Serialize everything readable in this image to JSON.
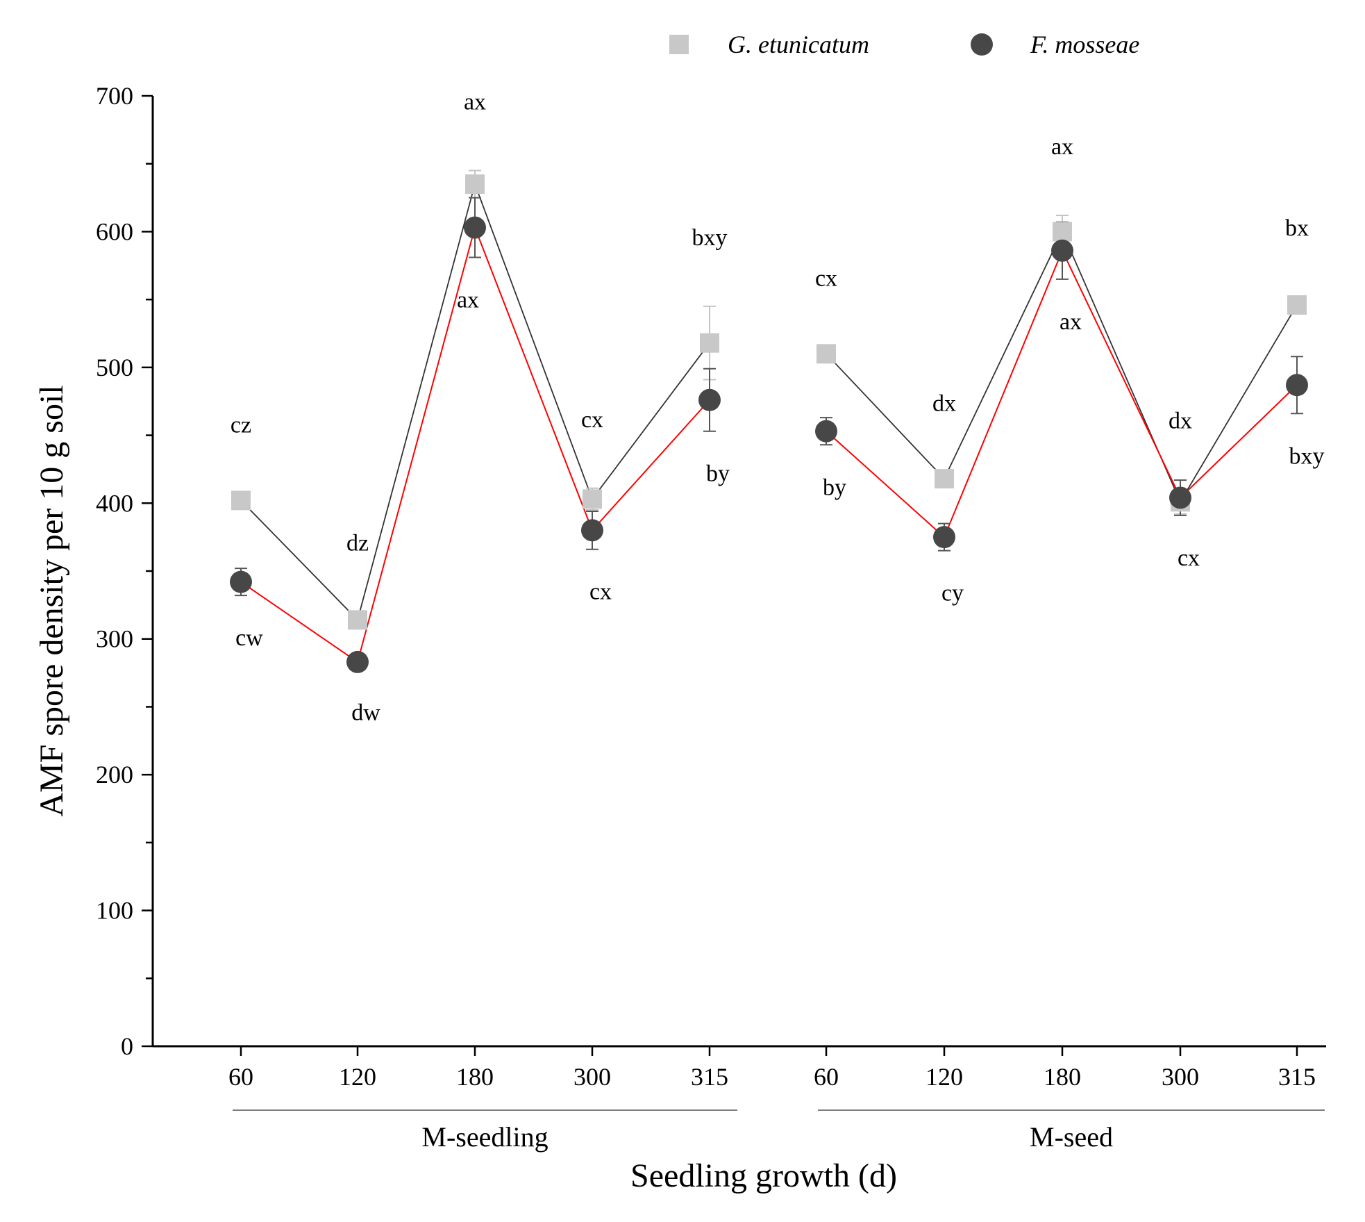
{
  "chart_data": {
    "type": "line",
    "title": "",
    "xlabel": "Seedling growth (d)",
    "ylabel": "AMF spore density per 10 g soil",
    "ylim": [
      0,
      700
    ],
    "yticks": [
      "0",
      "100",
      "200",
      "300",
      "400",
      "500",
      "600",
      "700"
    ],
    "categories": [
      "60",
      "120",
      "180",
      "300",
      "315",
      "60",
      "120",
      "180",
      "300",
      "315"
    ],
    "groups": [
      {
        "label": "M-seedling",
        "start": 0,
        "end": 4
      },
      {
        "label": "M-seed",
        "start": 5,
        "end": 9
      }
    ],
    "legend_position": "top-right",
    "series": [
      {
        "name": "G. etunicatum",
        "marker": "square",
        "color": "#c8c8c8",
        "line_color": "#333333",
        "values": [
          402,
          314,
          635,
          403,
          518,
          510,
          418,
          600,
          401,
          546
        ],
        "errors": [
          5,
          6,
          10,
          8,
          27,
          5,
          5,
          12,
          9,
          6
        ],
        "labels": [
          "cz",
          "dz",
          "ax",
          "cx",
          "bxy",
          "cx",
          "dx",
          "ax",
          "dx",
          "bx"
        ]
      },
      {
        "name": "F. mosseae",
        "marker": "circle",
        "color": "#474747",
        "line_color": "#ff0000",
        "values": [
          342,
          283,
          603,
          380,
          476,
          453,
          375,
          586,
          404,
          487
        ],
        "errors": [
          10,
          6,
          22,
          14,
          23,
          10,
          10,
          21,
          13,
          21
        ],
        "labels": [
          "cw",
          "dw",
          "ax",
          "cx",
          "by",
          "by",
          "cy",
          "ax",
          "cx",
          "bxy"
        ]
      }
    ]
  }
}
